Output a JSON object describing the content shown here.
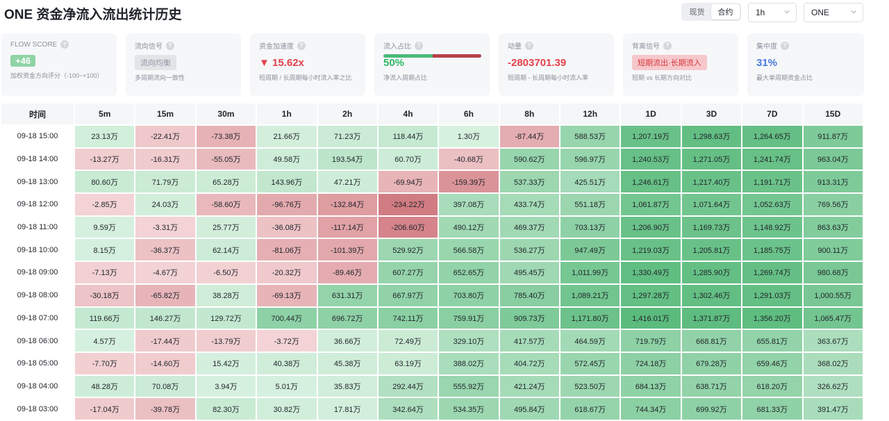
{
  "title": "ONE 资金净流入流出统计历史",
  "toggle": {
    "options": [
      "现货",
      "合约"
    ],
    "active": 1
  },
  "interval_select": {
    "value": "1h"
  },
  "coin_select": {
    "value": "ONE"
  },
  "cards": [
    {
      "id": "flow-score",
      "title": "FLOW SCORE",
      "value": "+46",
      "sub": "加权资金方向评分（-100~+100）"
    },
    {
      "id": "flow-signal",
      "title": "流向信号",
      "value": "流向均衡",
      "sub": "多周期流向一致性"
    },
    {
      "id": "acceleration",
      "title": "资金加速度",
      "value": "▼ 15.62x",
      "sub": "短周期 / 长周期每小时流入率之比"
    },
    {
      "id": "inflow-ratio",
      "title": "流入占比",
      "value": "50%",
      "sub": "净流入周期占比",
      "ratio": 0.5
    },
    {
      "id": "momentum",
      "title": "动量",
      "value": "-2803701.39",
      "sub": "短周期 - 长周期每小时流入率"
    },
    {
      "id": "divergence",
      "title": "背离信号",
      "value": "短期流出·长期流入",
      "sub": "短期 vs 长期方向对比"
    },
    {
      "id": "concentration",
      "title": "集中度",
      "value": "31%",
      "sub": "最大单周期资金占比"
    }
  ],
  "colors": {
    "positive": "#5cbd7c",
    "negative": "#cf6b72",
    "accent_red": "#e2414b",
    "accent_green": "#2fb866",
    "accent_blue": "#4a7ae0"
  },
  "table": {
    "columns": [
      "时间",
      "5m",
      "15m",
      "30m",
      "1h",
      "2h",
      "4h",
      "6h",
      "8h",
      "12h",
      "1D",
      "3D",
      "7D",
      "15D"
    ],
    "rows": [
      {
        "time": "09-18 15:00",
        "cells": [
          "23.13万",
          "-22.41万",
          "-73.38万",
          "21.66万",
          "71.23万",
          "118.44万",
          "1.30万",
          "-87.44万",
          "588.53万",
          "1,207.19万",
          "1,298.63万",
          "1,264.65万",
          "911.87万"
        ]
      },
      {
        "time": "09-18 14:00",
        "cells": [
          "-13.27万",
          "-16.31万",
          "-55.05万",
          "49.58万",
          "193.54万",
          "60.70万",
          "-40.68万",
          "590.62万",
          "596.97万",
          "1,240.53万",
          "1,271.05万",
          "1,241.74万",
          "963.04万"
        ]
      },
      {
        "time": "09-18 13:00",
        "cells": [
          "80.60万",
          "71.79万",
          "65.28万",
          "143.96万",
          "47.21万",
          "-69.94万",
          "-159.39万",
          "537.33万",
          "425.51万",
          "1,246.61万",
          "1,217.40万",
          "1,191.71万",
          "913.31万"
        ]
      },
      {
        "time": "09-18 12:00",
        "cells": [
          "-2.85万",
          "24.03万",
          "-58.60万",
          "-96.76万",
          "-132.84万",
          "-234.22万",
          "397.08万",
          "433.74万",
          "551.18万",
          "1,061.87万",
          "1,071.64万",
          "1,052.63万",
          "769.56万"
        ]
      },
      {
        "time": "09-18 11:00",
        "cells": [
          "9.59万",
          "-3.31万",
          "25.77万",
          "-36.08万",
          "-117.14万",
          "-206.60万",
          "490.12万",
          "469.37万",
          "703.13万",
          "1,206.90万",
          "1,169.73万",
          "1,148.92万",
          "863.63万"
        ]
      },
      {
        "time": "09-18 10:00",
        "cells": [
          "8.15万",
          "-36.37万",
          "62.14万",
          "-81.06万",
          "-101.39万",
          "529.92万",
          "566.58万",
          "536.27万",
          "947.49万",
          "1,219.03万",
          "1,205.81万",
          "1,185.75万",
          "900.11万"
        ]
      },
      {
        "time": "09-18 09:00",
        "cells": [
          "-7.13万",
          "-4.67万",
          "-6.50万",
          "-20.32万",
          "-89.46万",
          "607.27万",
          "652.65万",
          "495.45万",
          "1,011.99万",
          "1,330.49万",
          "1,285.90万",
          "1,269.74万",
          "980.68万"
        ]
      },
      {
        "time": "09-18 08:00",
        "cells": [
          "-30.18万",
          "-65.82万",
          "38.28万",
          "-69.13万",
          "631.31万",
          "667.97万",
          "703.80万",
          "785.40万",
          "1,089.21万",
          "1,297.28万",
          "1,302.46万",
          "1,291.03万",
          "1,000.55万"
        ]
      },
      {
        "time": "09-18 07:00",
        "cells": [
          "119.66万",
          "146.27万",
          "129.72万",
          "700.44万",
          "696.72万",
          "742.11万",
          "759.91万",
          "909.73万",
          "1,171.80万",
          "1,416.01万",
          "1,371.87万",
          "1,356.20万",
          "1,065.47万"
        ]
      },
      {
        "time": "09-18 06:00",
        "cells": [
          "4.57万",
          "-17.44万",
          "-13.79万",
          "-3.72万",
          "36.66万",
          "72.49万",
          "329.10万",
          "417.57万",
          "464.59万",
          "719.79万",
          "668.81万",
          "655.81万",
          "363.67万"
        ]
      },
      {
        "time": "09-18 05:00",
        "cells": [
          "-7.70万",
          "-14.60万",
          "15.42万",
          "40.38万",
          "45.38万",
          "63.19万",
          "388.02万",
          "404.72万",
          "572.45万",
          "724.18万",
          "679.28万",
          "659.46万",
          "368.02万"
        ]
      },
      {
        "time": "09-18 04:00",
        "cells": [
          "48.28万",
          "70.08万",
          "3.94万",
          "5.01万",
          "35.83万",
          "292.44万",
          "555.92万",
          "421.24万",
          "523.50万",
          "684.13万",
          "638.71万",
          "618.20万",
          "326.62万"
        ]
      },
      {
        "time": "09-18 03:00",
        "cells": [
          "-17.04万",
          "-39.78万",
          "82.30万",
          "30.82万",
          "17.81万",
          "342.64万",
          "534.35万",
          "495.84万",
          "618.67万",
          "744.34万",
          "699.92万",
          "681.33万",
          "391.47万"
        ]
      }
    ]
  }
}
